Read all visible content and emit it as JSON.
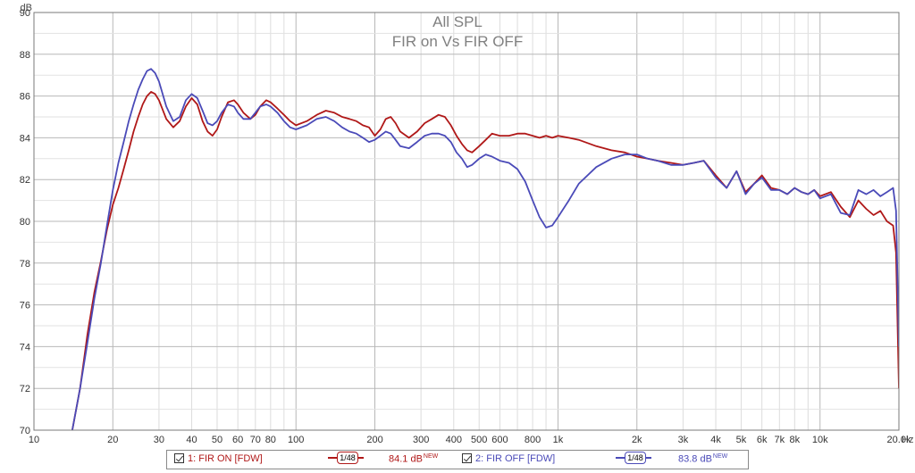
{
  "chart_data": {
    "type": "line",
    "title": "All SPL",
    "subtitle": "FIR on Vs FIR OFF",
    "ylabel": "dB",
    "xunit": "Hz",
    "xscale": "log",
    "xlim": [
      10,
      20000
    ],
    "ylim": [
      70,
      90
    ],
    "yticks": [
      70,
      72,
      74,
      76,
      78,
      80,
      82,
      84,
      86,
      88,
      90
    ],
    "xticks": [
      {
        "v": 10,
        "label": "10"
      },
      {
        "v": 20,
        "label": "20"
      },
      {
        "v": 30,
        "label": "30"
      },
      {
        "v": 40,
        "label": "40"
      },
      {
        "v": 50,
        "label": "50"
      },
      {
        "v": 60,
        "label": "60"
      },
      {
        "v": 70,
        "label": "70"
      },
      {
        "v": 80,
        "label": "80"
      },
      {
        "v": 100,
        "label": "100"
      },
      {
        "v": 200,
        "label": "200"
      },
      {
        "v": 300,
        "label": "300"
      },
      {
        "v": 400,
        "label": "400"
      },
      {
        "v": 500,
        "label": "500"
      },
      {
        "v": 600,
        "label": "600"
      },
      {
        "v": 800,
        "label": "800"
      },
      {
        "v": 1000,
        "label": "1k"
      },
      {
        "v": 2000,
        "label": "2k"
      },
      {
        "v": 3000,
        "label": "3k"
      },
      {
        "v": 4000,
        "label": "4k"
      },
      {
        "v": 5000,
        "label": "5k"
      },
      {
        "v": 6000,
        "label": "6k"
      },
      {
        "v": 7000,
        "label": "7k"
      },
      {
        "v": 8000,
        "label": "8k"
      },
      {
        "v": 10000,
        "label": "10k"
      },
      {
        "v": 20000,
        "label": "20.0k"
      }
    ],
    "grid": true,
    "series": [
      {
        "name": "1: FIR ON [FDW]",
        "color": "#b01818",
        "smoothing": "1/48",
        "level": "84.1 dB",
        "x": [
          14,
          15,
          16,
          17,
          18,
          19,
          20,
          21,
          22,
          23,
          24,
          25,
          26,
          27,
          28,
          29,
          30,
          32,
          34,
          36,
          38,
          40,
          42,
          44,
          46,
          48,
          50,
          52,
          55,
          58,
          60,
          63,
          67,
          70,
          73,
          77,
          80,
          85,
          90,
          95,
          100,
          110,
          120,
          130,
          140,
          150,
          160,
          170,
          180,
          190,
          200,
          210,
          220,
          230,
          240,
          250,
          270,
          290,
          310,
          330,
          350,
          370,
          390,
          410,
          430,
          450,
          470,
          500,
          530,
          560,
          600,
          650,
          700,
          750,
          800,
          850,
          900,
          950,
          1000,
          1100,
          1200,
          1400,
          1600,
          1800,
          2000,
          2200,
          2400,
          2700,
          3000,
          3300,
          3600,
          4000,
          4400,
          4800,
          5200,
          5600,
          6000,
          6500,
          7000,
          7500,
          8000,
          8500,
          9000,
          9500,
          10000,
          11000,
          12000,
          13000,
          14000,
          15000,
          16000,
          17000,
          18000,
          19000,
          19500,
          20000
        ],
        "y": [
          70.0,
          72.0,
          74.6,
          76.6,
          78.1,
          79.6,
          80.8,
          81.6,
          82.5,
          83.4,
          84.3,
          85.0,
          85.6,
          86.0,
          86.2,
          86.1,
          85.8,
          84.9,
          84.5,
          84.8,
          85.5,
          85.9,
          85.6,
          84.8,
          84.3,
          84.1,
          84.4,
          85.0,
          85.7,
          85.8,
          85.6,
          85.2,
          84.9,
          85.1,
          85.5,
          85.8,
          85.7,
          85.4,
          85.1,
          84.8,
          84.6,
          84.8,
          85.1,
          85.3,
          85.2,
          85.0,
          84.9,
          84.8,
          84.6,
          84.5,
          84.1,
          84.4,
          84.9,
          85.0,
          84.7,
          84.3,
          84.0,
          84.3,
          84.7,
          84.9,
          85.1,
          85.0,
          84.6,
          84.1,
          83.7,
          83.4,
          83.3,
          83.6,
          83.9,
          84.2,
          84.1,
          84.1,
          84.2,
          84.2,
          84.1,
          84.0,
          84.1,
          84.0,
          84.1,
          84.0,
          83.9,
          83.6,
          83.4,
          83.3,
          83.1,
          83.0,
          82.9,
          82.8,
          82.7,
          82.8,
          82.9,
          82.2,
          81.6,
          82.4,
          81.4,
          81.8,
          82.2,
          81.6,
          81.5,
          81.3,
          81.6,
          81.4,
          81.3,
          81.5,
          81.2,
          81.4,
          80.7,
          80.2,
          81.0,
          80.6,
          80.3,
          80.5,
          80.0,
          79.8,
          78.5,
          72.0
        ]
      },
      {
        "name": "2: FIR OFF [FDW]",
        "color": "#4a4ab8",
        "smoothing": "1/48",
        "level": "83.8 dB",
        "x": [
          14,
          15,
          16,
          17,
          18,
          19,
          20,
          21,
          22,
          23,
          24,
          25,
          26,
          27,
          28,
          29,
          30,
          32,
          34,
          36,
          38,
          40,
          42,
          44,
          46,
          48,
          50,
          52,
          55,
          58,
          60,
          63,
          67,
          70,
          73,
          77,
          80,
          85,
          90,
          95,
          100,
          110,
          120,
          130,
          140,
          150,
          160,
          170,
          180,
          190,
          200,
          210,
          220,
          230,
          240,
          250,
          270,
          290,
          310,
          330,
          350,
          370,
          390,
          410,
          430,
          450,
          470,
          500,
          530,
          560,
          600,
          650,
          700,
          750,
          800,
          850,
          900,
          950,
          1000,
          1100,
          1200,
          1400,
          1600,
          1800,
          2000,
          2200,
          2400,
          2700,
          3000,
          3300,
          3600,
          4000,
          4400,
          4800,
          5200,
          5600,
          6000,
          6500,
          7000,
          7500,
          8000,
          8500,
          9000,
          9500,
          10000,
          11000,
          12000,
          13000,
          14000,
          15000,
          16000,
          17000,
          18000,
          19000,
          19500,
          20000
        ],
        "y": [
          70.0,
          72.0,
          74.2,
          76.3,
          78.0,
          79.8,
          81.5,
          82.8,
          83.8,
          84.8,
          85.6,
          86.3,
          86.8,
          87.2,
          87.3,
          87.1,
          86.7,
          85.5,
          84.8,
          85.0,
          85.8,
          86.1,
          85.9,
          85.3,
          84.7,
          84.6,
          84.8,
          85.2,
          85.6,
          85.5,
          85.2,
          84.9,
          84.9,
          85.2,
          85.5,
          85.6,
          85.5,
          85.2,
          84.8,
          84.5,
          84.4,
          84.6,
          84.9,
          85.0,
          84.8,
          84.5,
          84.3,
          84.2,
          84.0,
          83.8,
          83.9,
          84.1,
          84.3,
          84.2,
          83.9,
          83.6,
          83.5,
          83.8,
          84.1,
          84.2,
          84.2,
          84.1,
          83.8,
          83.3,
          83.0,
          82.6,
          82.7,
          83.0,
          83.2,
          83.1,
          82.9,
          82.8,
          82.5,
          81.9,
          81.0,
          80.2,
          79.7,
          79.8,
          80.2,
          81.0,
          81.8,
          82.6,
          83.0,
          83.2,
          83.2,
          83.0,
          82.9,
          82.7,
          82.7,
          82.8,
          82.9,
          82.1,
          81.6,
          82.4,
          81.3,
          81.8,
          82.1,
          81.5,
          81.5,
          81.3,
          81.6,
          81.4,
          81.3,
          81.5,
          81.1,
          81.3,
          80.4,
          80.3,
          81.5,
          81.3,
          81.5,
          81.2,
          81.4,
          81.6,
          80.5,
          74.0
        ]
      }
    ]
  }
}
